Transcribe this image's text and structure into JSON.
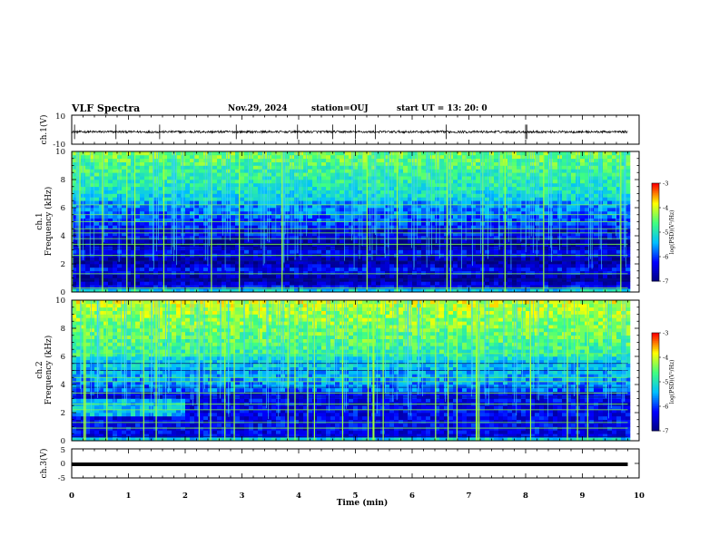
{
  "header": {
    "title": "VLF Spectra",
    "date": "Nov.29, 2024",
    "station": "station=OUJ",
    "start_ut": "start  UT  =   13: 20: 0"
  },
  "chart_data": [
    {
      "type": "line",
      "title": "",
      "ylabel": "ch.1(V)",
      "ylim": [
        -10,
        10
      ],
      "yticks": [
        "10",
        "-10"
      ],
      "xlim": [
        0,
        10
      ],
      "description_free": true,
      "trace_baseline": -1.5,
      "trace_amplitude": 0.8
    },
    {
      "type": "heatmap",
      "ylabel_line1": "ch.1",
      "ylabel_line2": "Frequency (kHz)",
      "xlim": [
        0,
        10
      ],
      "ylim": [
        0,
        10
      ],
      "yticks": [
        "0",
        "2",
        "4",
        "6",
        "8",
        "10"
      ],
      "data_extent_min": 9.8,
      "colorbar": {
        "label": "log(PSD)(V²/Hz)",
        "range": [
          -7,
          -3
        ],
        "ticks": [
          "-3",
          "-4",
          "-5",
          "-6",
          "-7"
        ]
      }
    },
    {
      "type": "heatmap",
      "ylabel_line1": "ch.2",
      "ylabel_line2": "Frequency (kHz)",
      "xlim": [
        0,
        10
      ],
      "ylim": [
        0,
        10
      ],
      "yticks": [
        "0",
        "2",
        "4",
        "6",
        "8",
        "10"
      ],
      "data_extent_min": 9.8,
      "colorbar": {
        "label": "log(PSD)(V²/Hz)",
        "range": [
          -7,
          -3
        ],
        "ticks": [
          "-3",
          "-4",
          "-5",
          "-6",
          "-7"
        ]
      }
    },
    {
      "type": "line",
      "ylabel": "ch.3(V)",
      "ylim": [
        -5,
        5
      ],
      "yticks": [
        "5",
        "0",
        "-5"
      ],
      "xlim": [
        0,
        10
      ],
      "trace_level": -0.3
    }
  ],
  "xaxis": {
    "label": "Time  (min)",
    "ticks": [
      "0",
      "1",
      "2",
      "3",
      "4",
      "5",
      "6",
      "7",
      "8",
      "9",
      "10"
    ]
  },
  "colors": {
    "colormap": [
      "#00007f",
      "#0000ff",
      "#00bfff",
      "#40ff80",
      "#ffff00",
      "#ff0000"
    ]
  }
}
